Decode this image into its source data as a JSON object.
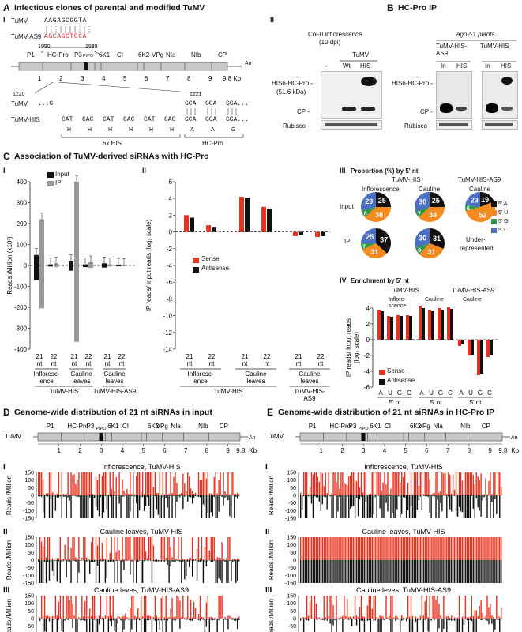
{
  "panel_A": {
    "letter": "A",
    "title": "Infectious clones of parental and modified TuMV",
    "sub_I": "I",
    "sub_II": "II",
    "seq_rows": [
      {
        "label": "TuMV",
        "seq": "AAGAGCGGTA"
      },
      {
        "label": "TuMV-AS9",
        "seq": "AGCAGCTGCA"
      }
    ],
    "pos_left": "1930",
    "pos_right": "1939",
    "genes": [
      "P1",
      "HC-Pro",
      "P3",
      "PIPO",
      "6K1",
      "CI",
      "6K2",
      "VPg",
      "NIa",
      "NIb",
      "CP"
    ],
    "poly_a": "An",
    "scale_ticks": [
      "1",
      "2",
      "3",
      "4",
      "5",
      "6",
      "7",
      "8",
      "9"
    ],
    "scale_unit": "9.8 Kb",
    "pos_1220": "1220",
    "pos_1221": "1221",
    "tumv_row": {
      "label": "TuMV",
      "left": "...G",
      "codons": [
        "GCA",
        "GCA",
        "GGA..."
      ]
    },
    "his_row": {
      "label": "TuMV-HIS",
      "codons": [
        "CAT",
        "CAC",
        "CAT",
        "CAC",
        "CAT",
        "CAC",
        "GCA",
        "GCA",
        "GGA..."
      ],
      "aa": [
        "H",
        "H",
        "H",
        "H",
        "H",
        "H",
        "A",
        "A",
        "G"
      ]
    },
    "his_label": "6x HIS",
    "hcpro_label": "HC-Pro",
    "blot": {
      "header": "Col-0 inflorescence",
      "header2": "(10 dpi)",
      "group": "TuMV",
      "lanes": [
        "-",
        "Wt",
        "HIS"
      ],
      "rows": [
        "HIS6-HC-Pro -",
        "(51.6 kDa)",
        "CP -",
        "Rubisco -"
      ]
    }
  },
  "panel_B": {
    "letter": "B",
    "title": "HC-Pro IP",
    "plants": "ago2-1 plants",
    "groups": [
      "TuMV-HIS-AS9",
      "TuMV-HIS"
    ],
    "lanes": [
      "In",
      "HIS",
      "In",
      "HIS"
    ],
    "rows": [
      "HIS6-HC-Pro -",
      "CP -",
      "Rubisco -"
    ]
  },
  "panel_C": {
    "letter": "C",
    "title": "Association of TuMV-derived siRNAs with HC-Pro",
    "sub_I": "I",
    "sub_II": "II",
    "sub_III": "III",
    "sub_IV": "IV",
    "I_ylabel": "Reads /Million (x10³)",
    "I_legend": [
      "Input",
      "IP"
    ],
    "II_ylabel": "IP reads/ Input reads (log₂ scale)",
    "II_legend": [
      "Sense",
      "Antisense"
    ],
    "x_sizes": [
      "21 nt",
      "22 nt"
    ],
    "tissues": [
      "Infloresc-ence",
      "Cauline leaves",
      "Cauline leaves"
    ],
    "tissue_lines": [
      [
        "Infloresc-",
        "ence"
      ],
      [
        "Cauline",
        "leaves"
      ],
      [
        "Cauline",
        "leaves"
      ]
    ],
    "constructs": [
      "TuMV-HIS",
      "TuMV-HIS-AS9"
    ],
    "III_title": "Proportion (%) by 5' nt",
    "III_groups": [
      "TuMV-HIS",
      "TuMV-HIS-AS9"
    ],
    "III_cols": [
      "Inflorescence",
      "Cauline",
      "Cauline"
    ],
    "III_rows": [
      "Input",
      "IP"
    ],
    "III_legend": [
      "5' A",
      "5' U",
      "5' G",
      "5' C"
    ],
    "underrep": [
      "Under-",
      "represented"
    ],
    "IV_title": "Enrichment by 5' nt",
    "IV_groups": [
      "TuMV-HIS",
      "TuMV-HIS-AS9"
    ],
    "IV_cols": [
      "Infloresc-ence",
      "Cauline",
      "Cauline"
    ],
    "IV_col_lines": [
      [
        "Inflore-",
        "scence"
      ],
      [
        "Cauline",
        ""
      ],
      [
        "Cauline",
        ""
      ]
    ],
    "IV_ylabel": "IP reads/ Input reads (log₂ scale)",
    "IV_xnt": "5' nt",
    "IV_legend": [
      "Sense",
      "Antisense"
    ]
  },
  "panel_D": {
    "letter": "D",
    "title": "Genome-wide distribution of 21 nt siRNAs in input",
    "rows": [
      {
        "roman": "I",
        "label": "Inflorescence, TuMV-HIS"
      },
      {
        "roman": "II",
        "label": "Cauline leaves, TuMV-HIS"
      },
      {
        "roman": "III",
        "label": "Cauline leves, TuMV-HIS-AS9"
      }
    ],
    "ylabel": "Reads /Million"
  },
  "panel_E": {
    "letter": "E",
    "title": "Genome-wide distribution of 21 nt siRNAs in HC-Pro IP",
    "rows": [
      {
        "roman": "I",
        "label": "Inflorescence, TuMV-HIS"
      },
      {
        "roman": "II",
        "label": "Cauline leaves, TuMV-HIS"
      },
      {
        "roman": "III",
        "label": "Cauline leves, TuMV-HIS-AS9"
      }
    ],
    "ylabel": "Reads /Million"
  },
  "colors": {
    "sense": "#e8311f",
    "antisense": "#111111",
    "input": "#111111",
    "ip": "#999999",
    "A": "#111111",
    "U": "#f58a1f",
    "G": "#2e9a47",
    "C": "#4a6fc4",
    "genome": "#c8c8c8"
  },
  "chart_data": [
    {
      "type": "bar",
      "panel": "C-I",
      "categories": [
        "21 nt Inflorescence TuMV-HIS",
        "22 nt Inflorescence TuMV-HIS",
        "21 nt Cauline TuMV-HIS",
        "22 nt Cauline TuMV-HIS",
        "21 nt Cauline TuMV-HIS-AS9",
        "22 nt Cauline TuMV-HIS-AS9"
      ],
      "series": [
        {
          "name": "Input",
          "pos": [
            50,
            5,
            20,
            5,
            10,
            4
          ],
          "neg": [
            -70,
            -5,
            -25,
            -8,
            -10,
            -4
          ]
        },
        {
          "name": "IP",
          "pos": [
            220,
            10,
            400,
            15,
            5,
            3
          ],
          "neg": [
            -205,
            -8,
            -365,
            -12,
            -5,
            -3
          ]
        }
      ],
      "ylabel": "Reads /Million (x10³)",
      "ylim": [
        -400,
        400
      ],
      "yticks": [
        400,
        300,
        200,
        100,
        0,
        -100,
        -200,
        -300,
        -400
      ]
    },
    {
      "type": "bar",
      "panel": "C-II",
      "categories": [
        "21 nt Inflorescence TuMV-HIS",
        "22 nt Inflorescence TuMV-HIS",
        "21 nt Cauline TuMV-HIS",
        "22 nt Cauline TuMV-HIS",
        "21 nt Cauline TuMV-HIS-AS9",
        "22 nt Cauline TuMV-HIS-AS9"
      ],
      "series": [
        {
          "name": "Sense",
          "values": [
            2.0,
            0.8,
            4.2,
            3.0,
            -0.5,
            -0.6
          ]
        },
        {
          "name": "Antisense",
          "values": [
            1.7,
            0.6,
            4.1,
            2.8,
            -0.4,
            -0.5
          ]
        }
      ],
      "ylabel": "IP reads/ Input reads (log₂ scale)",
      "ylim": [
        -14,
        6
      ],
      "yticks": [
        6,
        4,
        2,
        0,
        -2,
        -4,
        -6,
        -8,
        -10,
        -12,
        -14
      ]
    },
    {
      "type": "pie",
      "panel": "C-III",
      "slices_order": [
        "5' A",
        "5' U",
        "5' G",
        "5' C"
      ],
      "pies": [
        {
          "row": "Input",
          "col": "Inflorescence TuMV-HIS",
          "values": [
            25,
            38,
            8,
            29
          ]
        },
        {
          "row": "Input",
          "col": "Cauline TuMV-HIS",
          "values": [
            25,
            38,
            7,
            30
          ]
        },
        {
          "row": "Input",
          "col": "Cauline TuMV-HIS-AS9",
          "values": [
            19,
            52,
            6,
            23
          ]
        },
        {
          "row": "IP",
          "col": "Inflorescence TuMV-HIS",
          "values": [
            37,
            31,
            7,
            25
          ]
        },
        {
          "row": "IP",
          "col": "Cauline TuMV-HIS",
          "values": [
            31,
            31,
            8,
            30
          ]
        }
      ]
    },
    {
      "type": "bar",
      "panel": "C-IV",
      "categories": [
        "A",
        "U",
        "G",
        "C"
      ],
      "groups": [
        "Inflorescence TuMV-HIS",
        "Cauline TuMV-HIS",
        "Cauline TuMV-HIS-AS9"
      ],
      "series": [
        {
          "name": "Sense",
          "values": [
            [
              3.8,
              3.0,
              3.1,
              3.1
            ],
            [
              4.3,
              3.8,
              4.0,
              4.1
            ],
            [
              -0.8,
              -2.0,
              -4.5,
              -2.2
            ]
          ]
        },
        {
          "name": "Antisense",
          "values": [
            [
              3.6,
              2.9,
              3.0,
              3.0
            ],
            [
              4.0,
              3.6,
              3.8,
              3.9
            ],
            [
              -0.6,
              -1.9,
              -4.3,
              -2.0
            ]
          ]
        }
      ],
      "ylabel": "IP reads/ Input reads (log₂ scale)",
      "ylim": [
        -6,
        4
      ],
      "yticks": [
        4,
        2,
        0,
        -2,
        -4,
        -6
      ]
    },
    {
      "type": "bar",
      "panel": "D/E genome-wide",
      "xlabel": "TuMV genome (Kb)",
      "xlim": [
        0,
        9.8
      ],
      "ylabel": "Reads /Million",
      "ylim": [
        -150,
        150
      ],
      "yticks": [
        150,
        100,
        50,
        0,
        -50,
        -100,
        -150
      ],
      "series": [
        {
          "name": "Sense"
        },
        {
          "name": "Antisense"
        }
      ]
    }
  ]
}
